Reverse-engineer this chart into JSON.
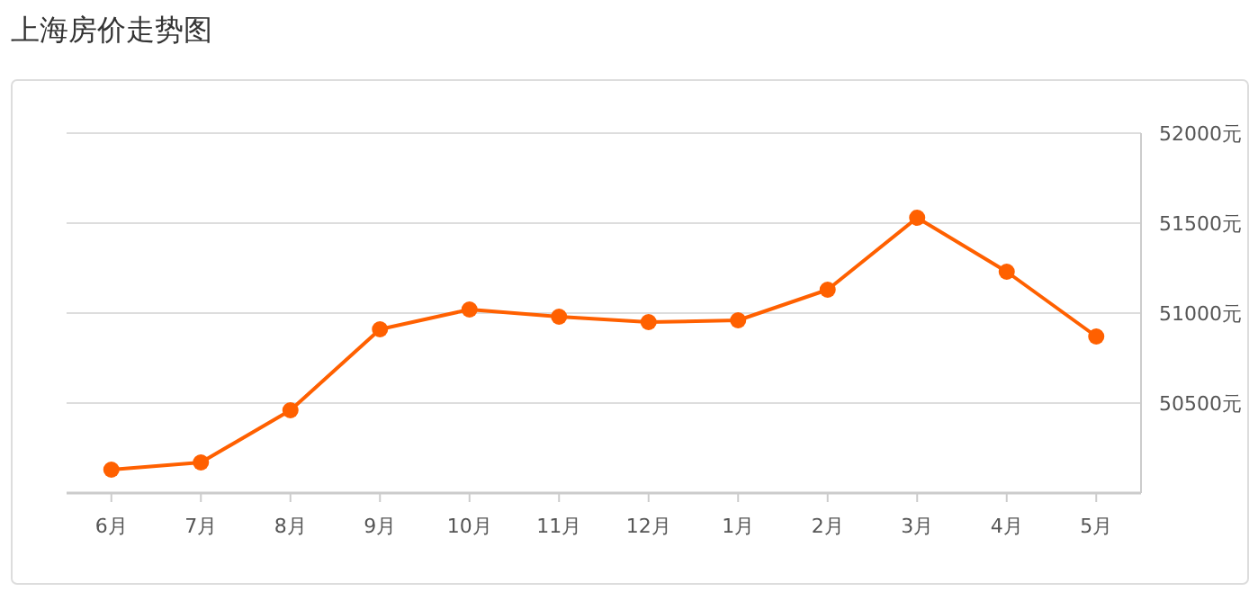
{
  "chart_data": {
    "type": "line",
    "title": "上海房价走势图",
    "categories": [
      "6月",
      "7月",
      "8月",
      "9月",
      "10月",
      "11月",
      "12月",
      "1月",
      "2月",
      "3月",
      "4月",
      "5月"
    ],
    "series": [
      {
        "color": "#ff6000",
        "values": [
          50130,
          50170,
          50460,
          50910,
          51020,
          50980,
          50950,
          50960,
          51130,
          51530,
          51230,
          50870
        ]
      }
    ],
    "ylim": [
      50000,
      52000
    ],
    "yticks": [
      {
        "value": 50500,
        "label": "50500元"
      },
      {
        "value": 51000,
        "label": "51000元"
      },
      {
        "value": 51500,
        "label": "51500元"
      },
      {
        "value": 52000,
        "label": "52000元"
      }
    ],
    "grid": "y",
    "marker": "circle",
    "line_style": "solid"
  }
}
